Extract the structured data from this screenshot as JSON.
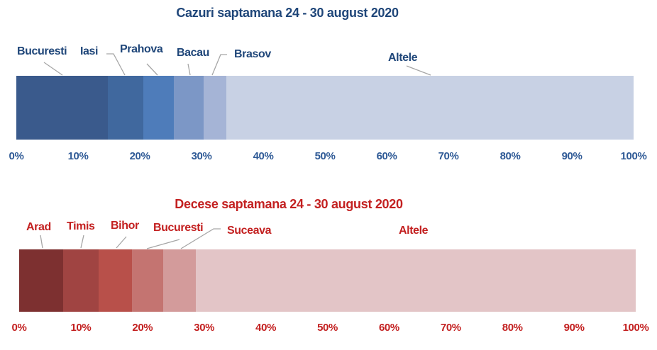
{
  "page": {
    "background": "#ffffff"
  },
  "chart_data": [
    {
      "type": "bar",
      "variant": "horizontal-stacked-100pct",
      "title": "Cazuri saptamana 24 - 30 august 2020",
      "categories": [
        "Bucuresti",
        "Iasi",
        "Prahova",
        "Bacau",
        "Brasov",
        "Altele"
      ],
      "values": [
        14.8,
        5.8,
        4.9,
        4.9,
        3.6,
        66.0
      ],
      "colors": [
        "#3A5A8C",
        "#40689E",
        "#4E7CBA",
        "#7C97C6",
        "#A5B4D6",
        "#C8D1E4"
      ],
      "x_ticks": [
        "0%",
        "10%",
        "20%",
        "30%",
        "40%",
        "50%",
        "60%",
        "70%",
        "80%",
        "90%",
        "100%"
      ],
      "xlim": [
        0,
        100
      ],
      "grid": "off",
      "legend": "none",
      "title_color": "#1F4679",
      "category_label_color": "#1F4679",
      "tick_label_color": "#2F5A96",
      "leader_line_color": "#A6A6A6"
    },
    {
      "type": "bar",
      "variant": "horizontal-stacked-100pct",
      "title": "Decese saptamana 24 - 30 august 2020",
      "categories": [
        "Arad",
        "Timis",
        "Bihor",
        "Bucuresti",
        "Suceava",
        "Altele"
      ],
      "values": [
        7.1,
        5.8,
        5.4,
        5.1,
        5.2,
        71.4
      ],
      "colors": [
        "#7D3030",
        "#A04442",
        "#B8504A",
        "#C47471",
        "#D39B9B",
        "#E3C5C7"
      ],
      "x_ticks": [
        "0%",
        "10%",
        "20%",
        "30%",
        "40%",
        "50%",
        "60%",
        "70%",
        "80%",
        "90%",
        "100%"
      ],
      "xlim": [
        0,
        100
      ],
      "grid": "off",
      "legend": "none",
      "title_color": "#C32020",
      "category_label_color": "#C32020",
      "tick_label_color": "#C32020",
      "leader_line_color": "#A6A6A6"
    }
  ]
}
